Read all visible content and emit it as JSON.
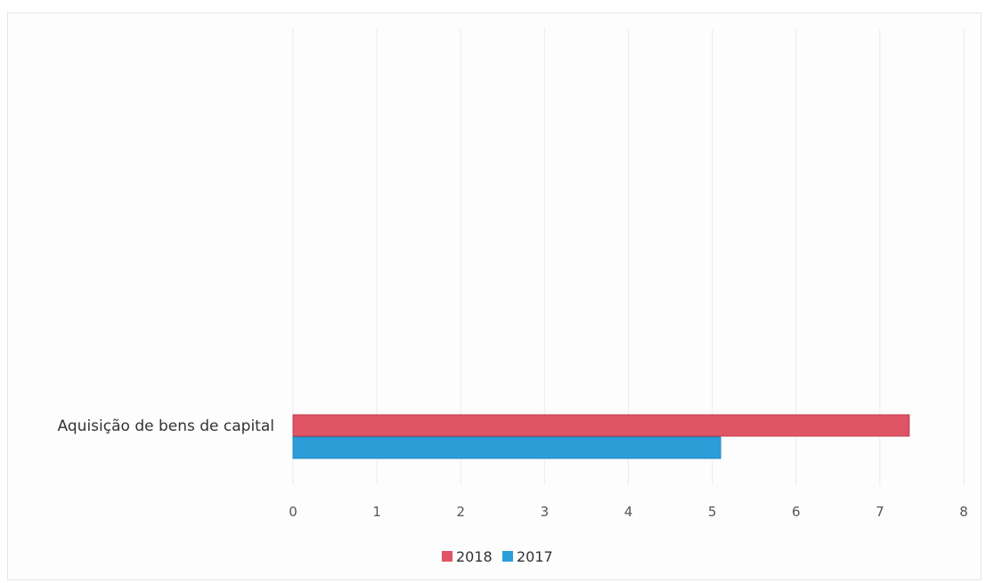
{
  "chart_data": {
    "type": "bar",
    "orientation": "horizontal",
    "categories": [
      "Aquisição de bens de capital"
    ],
    "series": [
      {
        "name": "2018",
        "values": [
          7.35
        ],
        "color": "#e05566"
      },
      {
        "name": "2017",
        "values": [
          5.1
        ],
        "color": "#2b9ed8"
      }
    ],
    "xlim": [
      0,
      8
    ],
    "xticks": [
      "0",
      "1",
      "2",
      "3",
      "4",
      "5",
      "6",
      "7",
      "8"
    ],
    "grid": true,
    "legend_position": "bottom"
  }
}
